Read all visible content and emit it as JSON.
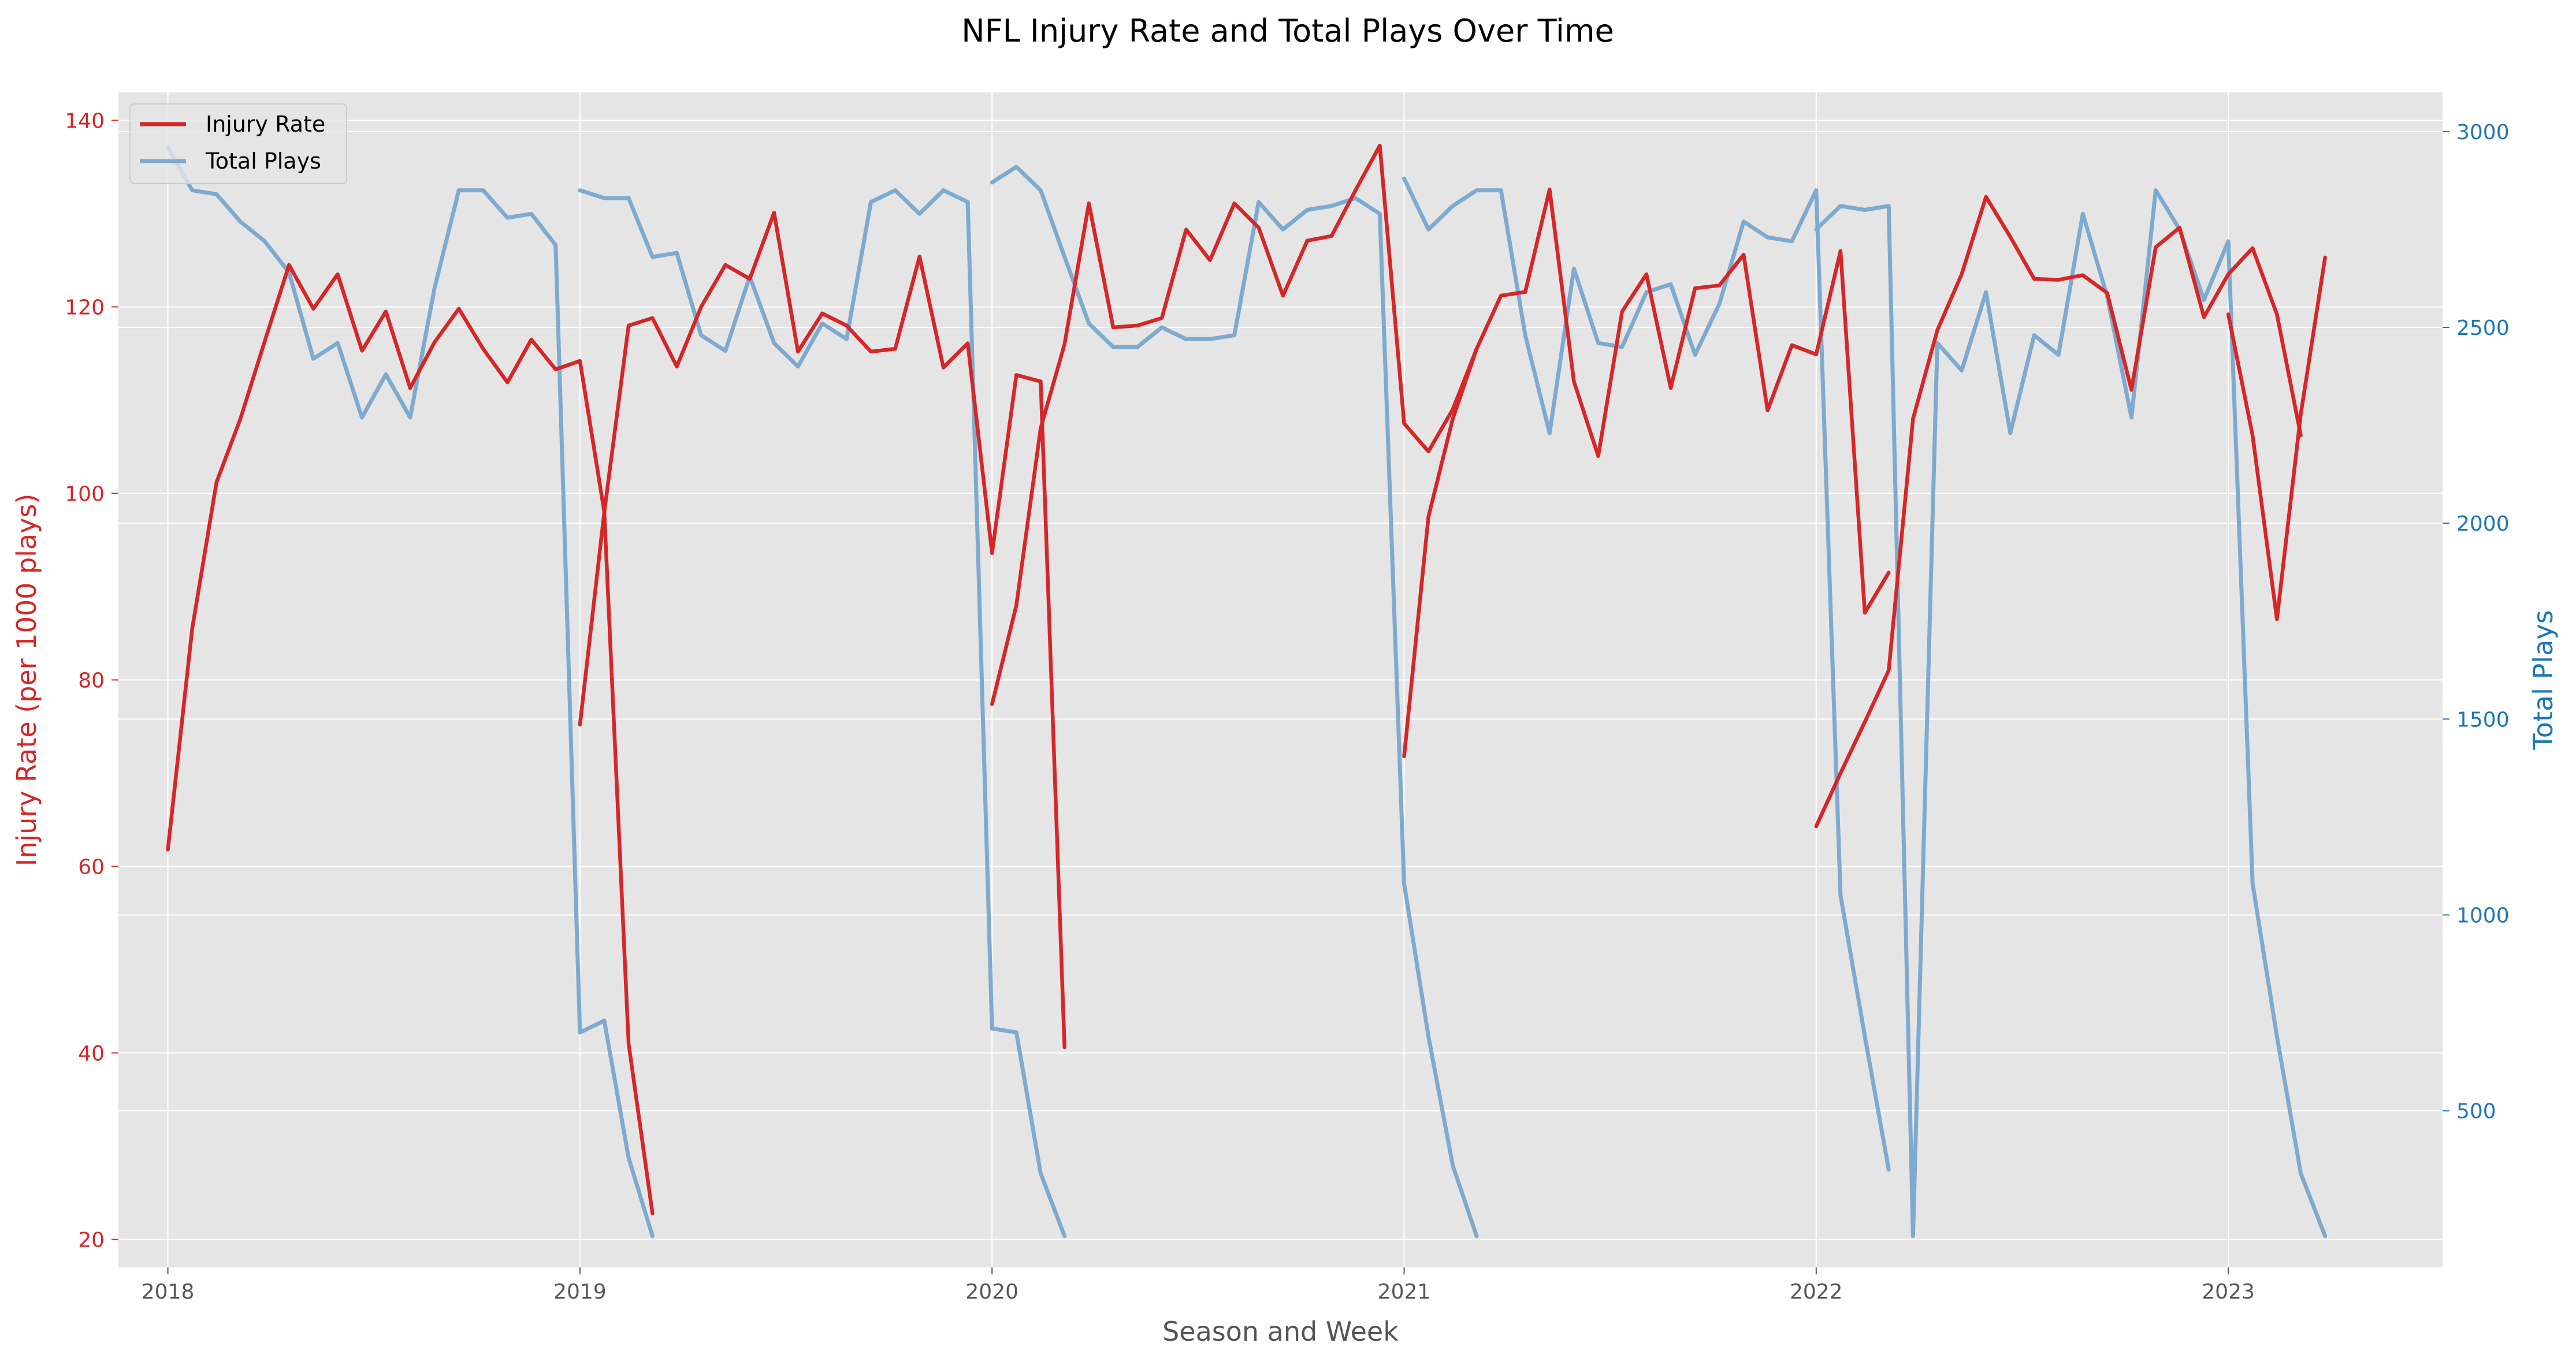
{
  "chart_data": {
    "type": "line",
    "title": "NFL Injury Rate and Total Plays Over Time",
    "xlabel": "Season and Week",
    "ylabel_left": "Injury Rate (per 1000 plays)",
    "ylabel_right": "Total Plays",
    "xlim": [
      -0.12,
      5.52
    ],
    "ylim_left": [
      17,
      143
    ],
    "ylim_right": [
      100,
      3100
    ],
    "x_ticks": [
      0,
      1,
      2,
      3,
      4,
      5
    ],
    "x_tick_labels": [
      "2018",
      "2019",
      "2020",
      "2021",
      "2022",
      "2023"
    ],
    "y_left_ticks": [
      20,
      40,
      60,
      80,
      100,
      120,
      140
    ],
    "y_right_ticks": [
      500,
      1000,
      1500,
      2000,
      2500,
      3000
    ],
    "grid": true,
    "legend_position": "top-left",
    "series": [
      {
        "name": "Injury Rate",
        "axis": "left",
        "color": "#d62728",
        "x": [
          0.0,
          0.059,
          0.118,
          0.176,
          0.235,
          0.294,
          0.353,
          0.412,
          0.471,
          0.529,
          0.588,
          0.647,
          0.706,
          0.765,
          0.824,
          0.882,
          0.941,
          1.0,
          0.0,
          0.059,
          0.118,
          0.176,
          0.235,
          0.294,
          0.353,
          0.412,
          0.471,
          0.529,
          0.588,
          0.647,
          0.706,
          0.765,
          0.824,
          0.882,
          0.941,
          1.0,
          0.0,
          0.059,
          0.118,
          0.176,
          0.235,
          0.294,
          0.353,
          0.412,
          0.471,
          0.529,
          0.588,
          0.647,
          0.706,
          0.765,
          0.824,
          0.882,
          0.941,
          1.0,
          0.0,
          0.059,
          0.118,
          0.176,
          0.235,
          0.294,
          0.353,
          0.412,
          0.471,
          0.529,
          0.588,
          0.647,
          0.706,
          0.765,
          0.824,
          0.882,
          0.941,
          1.0,
          0.0,
          0.059,
          0.118,
          0.176,
          0.235,
          0.294,
          0.353,
          0.412,
          0.471,
          0.529,
          0.588,
          0.647,
          0.706,
          0.765,
          0.824,
          0.882,
          0.941,
          1.0,
          0.0,
          0.059,
          0.118,
          0.176,
          0.235
        ],
        "x_offsets": [
          0,
          1,
          2,
          3,
          4,
          5
        ],
        "segments": [
          {
            "season": 0,
            "x": [
              0.0,
              0.059,
              0.118,
              0.176,
              0.235,
              0.294,
              0.353,
              0.412,
              0.471,
              0.529,
              0.588,
              0.647,
              0.706,
              0.765,
              0.824,
              0.882,
              0.941,
              1.0,
              1.059,
              1.118,
              1.176
            ],
            "y": [
              61.8,
              85.5,
              101.2,
              108.0,
              116.3,
              124.5,
              119.8,
              123.5,
              115.3,
              119.5,
              111.3,
              116.2,
              119.8,
              115.5,
              111.9,
              116.5,
              113.3,
              114.2,
              98.0,
              41.0,
              22.8
            ]
          },
          {
            "season": 1,
            "x": [
              1.0,
              1.059,
              1.118,
              1.176,
              1.235,
              1.294,
              1.353,
              1.412,
              1.471,
              1.529,
              1.588,
              1.647,
              1.706,
              1.765,
              1.824,
              1.882,
              1.941,
              2.0,
              2.059,
              2.118,
              2.176
            ],
            "y": [
              75.2,
              98.0,
              118.0,
              118.8,
              113.6,
              120.0,
              124.5,
              123.0,
              130.1,
              115.2,
              119.3,
              118.0,
              115.2,
              115.5,
              125.4,
              113.5,
              116.1,
              93.6,
              112.7,
              112.0,
              40.6
            ]
          },
          {
            "season": 2,
            "x": [
              2.0,
              2.059,
              2.118,
              2.176,
              2.235,
              2.294,
              2.353,
              2.412,
              2.471,
              2.529,
              2.588,
              2.647,
              2.706,
              2.765,
              2.824,
              2.882,
              2.941,
              3.0,
              3.059,
              3.118,
              3.176
            ],
            "y": [
              77.4,
              88.0,
              107.0,
              116.0,
              131.1,
              117.8,
              118.0,
              118.8,
              128.3,
              125.0,
              131.1,
              128.5,
              121.2,
              127.1,
              127.6,
              132.5,
              137.3,
              107.5,
              104.5,
              109.0,
              115.5
            ]
          },
          {
            "season": 3,
            "x": [
              3.0,
              3.059,
              3.118,
              3.176,
              3.235,
              3.294,
              3.353,
              3.412,
              3.471,
              3.529,
              3.588,
              3.647,
              3.706,
              3.765,
              3.824,
              3.882,
              3.941,
              4.0,
              4.059,
              4.118,
              4.176
            ],
            "y": [
              71.8,
              97.5,
              108.0,
              115.5,
              121.2,
              121.6,
              132.6,
              112.0,
              104.0,
              119.5,
              123.5,
              111.3,
              122.0,
              122.3,
              125.6,
              108.9,
              115.9,
              114.9,
              126.0,
              87.2,
              91.5
            ]
          },
          {
            "season": 4,
            "x": [
              4.0,
              4.059,
              4.118,
              4.176,
              4.235,
              4.294,
              4.353,
              4.412,
              4.471,
              4.529,
              4.588,
              4.647,
              4.706,
              4.765,
              4.824,
              4.882,
              4.941,
              5.0,
              5.059,
              5.118,
              5.176
            ],
            "y": [
              64.3,
              70.0,
              75.5,
              81.0,
              108.0,
              117.5,
              123.5,
              131.8,
              127.5,
              123.0,
              122.9,
              123.4,
              121.5,
              111.1,
              126.4,
              128.5,
              118.9,
              123.5,
              126.3,
              119.2,
              106.2
            ]
          },
          {
            "season": 5,
            "x": [
              5.0,
              5.059,
              5.118,
              5.176,
              5.235
            ],
            "y": [
              119.2,
              106.2,
              86.5,
              108.5,
              125.3
            ]
          }
        ]
      },
      {
        "name": "Total Plays",
        "axis": "right",
        "color": "#7eaacf",
        "segments": [
          {
            "season": 0,
            "x": [
              0.0,
              0.059,
              0.118,
              0.176,
              0.235,
              0.294,
              0.353,
              0.412,
              0.471,
              0.529,
              0.588,
              0.647,
              0.706,
              0.765,
              0.824,
              0.882,
              0.941,
              1.0,
              1.059,
              1.118,
              1.176
            ],
            "y": [
              2960,
              2850,
              2840,
              2770,
              2720,
              2640,
              2420,
              2460,
              2270,
              2380,
              2270,
              2600,
              2850,
              2850,
              2780,
              2790,
              2710,
              700,
              730,
              380,
              180
            ]
          },
          {
            "season": 1,
            "x": [
              1.0,
              1.059,
              1.118,
              1.176,
              1.235,
              1.294,
              1.353,
              1.412,
              1.471,
              1.529,
              1.588,
              1.647,
              1.706,
              1.765,
              1.824,
              1.882,
              1.941,
              2.0,
              2.059,
              2.118,
              2.176
            ],
            "y": [
              2850,
              2830,
              2830,
              2680,
              2690,
              2480,
              2440,
              2630,
              2460,
              2400,
              2510,
              2470,
              2820,
              2850,
              2790,
              2850,
              2820,
              710,
              700,
              340,
              180
            ]
          },
          {
            "season": 2,
            "x": [
              2.0,
              2.059,
              2.118,
              2.176,
              2.235,
              2.294,
              2.353,
              2.412,
              2.471,
              2.529,
              2.588,
              2.647,
              2.706,
              2.765,
              2.824,
              2.882,
              2.941,
              3.0,
              3.059,
              3.118,
              3.176
            ],
            "y": [
              2870,
              2910,
              2850,
              2680,
              2510,
              2450,
              2450,
              2500,
              2470,
              2470,
              2480,
              2820,
              2750,
              2800,
              2810,
              2830,
              2790,
              1080,
              690,
              360,
              180
            ]
          },
          {
            "season": 3,
            "x": [
              3.0,
              3.059,
              3.118,
              3.176,
              3.235,
              3.294,
              3.353,
              3.412,
              3.471,
              3.529,
              3.588,
              3.647,
              3.706,
              3.765,
              3.824,
              3.882,
              3.941,
              4.0,
              4.059,
              4.118,
              4.176
            ],
            "y": [
              2880,
              2750,
              2810,
              2850,
              2850,
              2480,
              2230,
              2650,
              2460,
              2450,
              2590,
              2610,
              2430,
              2560,
              2770,
              2730,
              2720,
              2850,
              1050,
              690,
              350
            ]
          },
          {
            "season": 4,
            "x": [
              4.0,
              4.059,
              4.118,
              4.176,
              4.235,
              4.294,
              4.353,
              4.412,
              4.471,
              4.529,
              4.588,
              4.647,
              4.706,
              4.765,
              4.824,
              4.882,
              4.941,
              5.0,
              5.059,
              5.118,
              5.176,
              5.235
            ],
            "y": [
              2750,
              2810,
              2800,
              2810,
              180,
              2460,
              2390,
              2590,
              2230,
              2480,
              2430,
              2790,
              2580,
              2270,
              2850,
              2750,
              2570,
              2720,
              1080,
              690,
              340,
              180
            ]
          }
        ]
      }
    ]
  }
}
